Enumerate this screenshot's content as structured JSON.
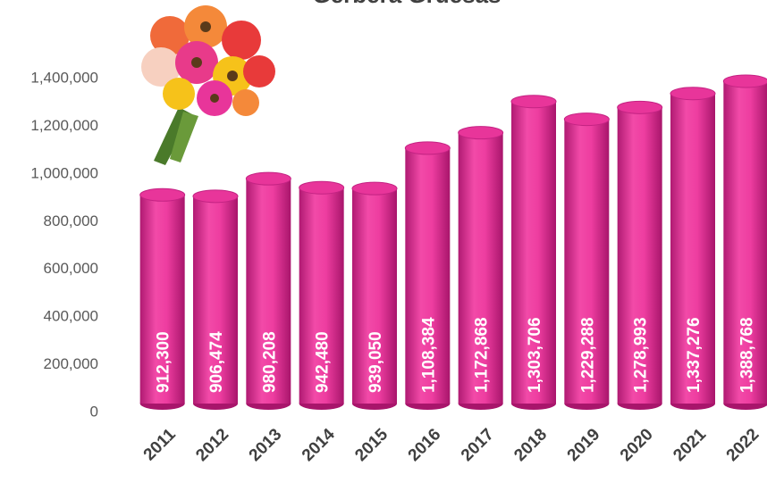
{
  "chart_data": {
    "type": "bar",
    "title": "Gerbera Gruesas",
    "categories": [
      "2011",
      "2012",
      "2013",
      "2014",
      "2015",
      "2016",
      "2017",
      "2018",
      "2019",
      "2020",
      "2021",
      "2022"
    ],
    "values": [
      912300,
      906474,
      980208,
      942480,
      939050,
      1108384,
      1172868,
      1303706,
      1229288,
      1278993,
      1337276,
      1388768
    ],
    "value_labels": [
      "912,300",
      "906,474",
      "980,208",
      "942,480",
      "939,050",
      "1,108,384",
      "1,172,868",
      "1,303,706",
      "1,229,288",
      "1,278,993",
      "1,337,276",
      "1,388,768"
    ],
    "color": "#e8359a",
    "ylim": [
      0,
      1400000
    ],
    "yticks": [
      0,
      {
        "value": 200000,
        "label": "200,000"
      },
      {
        "value": 400000,
        "label": "400,000"
      },
      {
        "value": 600000,
        "label": "600,000"
      },
      {
        "value": 800000,
        "label": "800,000"
      },
      {
        "value": 1000000,
        "label": "1,000,000"
      },
      {
        "value": 1200000,
        "label": "1,200,000"
      },
      {
        "value": 1400000,
        "label": "1,400,000"
      }
    ],
    "grid": false
  }
}
